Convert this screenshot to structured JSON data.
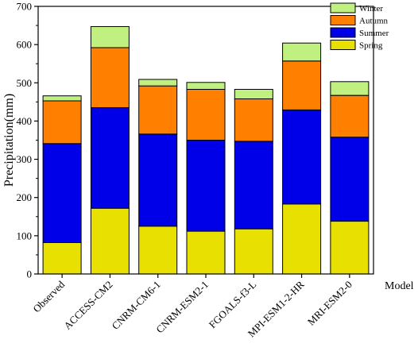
{
  "chart_data": {
    "type": "bar",
    "stacked": true,
    "categories": [
      "Observed",
      "ACCESS-CM2",
      "CNRM-CM6-1",
      "CNRM-ESM2-1",
      "FGOALS-f3-L",
      "MPI-ESM1-2-HR",
      "MRI-ESM2-0"
    ],
    "series": [
      {
        "name": "Spring",
        "color": "#e8e000",
        "values": [
          82,
          172,
          125,
          112,
          118,
          183,
          138
        ]
      },
      {
        "name": "Summer",
        "color": "#0000e8",
        "values": [
          259,
          263,
          241,
          238,
          229,
          246,
          220
        ]
      },
      {
        "name": "Autumn",
        "color": "#ff8000",
        "values": [
          112,
          157,
          126,
          133,
          111,
          128,
          109
        ]
      },
      {
        "name": "Winter",
        "color": "#c0f080",
        "values": [
          13,
          55,
          17,
          18,
          25,
          47,
          36
        ]
      }
    ],
    "legend_order": [
      "Winter",
      "Autumn",
      "Summer",
      "Spring"
    ],
    "legend_position": "top-right",
    "ylabel": "Precipitation(mm)",
    "xlabel": "Model",
    "ylim": [
      0,
      700
    ],
    "yticks": [
      0,
      100,
      200,
      300,
      400,
      500,
      600,
      700
    ],
    "grid": false
  }
}
